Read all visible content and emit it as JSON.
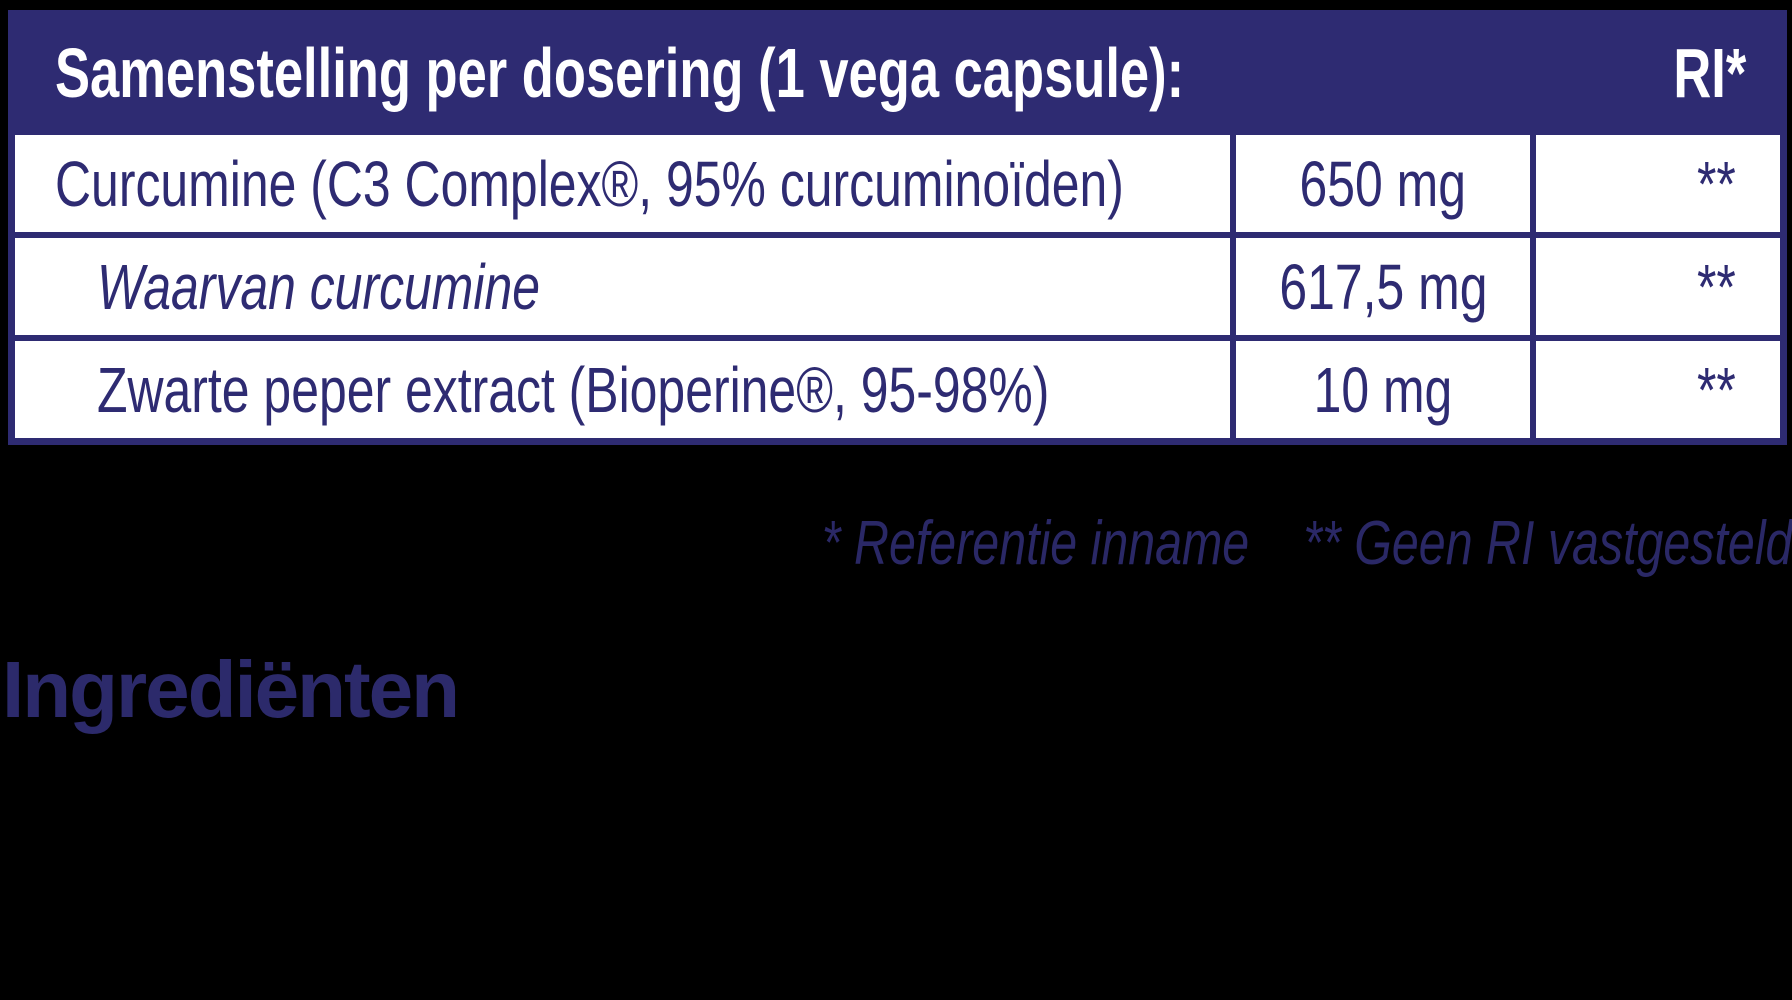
{
  "colors": {
    "background": "#000000",
    "navy": "#2E2B72",
    "white": "#FFFFFF",
    "table_text": "#2E2B72",
    "footnote_text": "#2A2866",
    "heading_text": "#2C2A6B"
  },
  "table": {
    "header": {
      "title": "Samenstelling per dosering (1 vega capsule):",
      "ri_label": "RI*"
    },
    "rows": [
      {
        "name": "Curcumine (C3 Complex®, 95% curcuminoïden)",
        "amount": "650 mg",
        "ri": "**"
      },
      {
        "name": "Waarvan curcumine",
        "amount": "617,5 mg",
        "ri": "**"
      },
      {
        "name": "Zwarte peper extract (Bioperine®, 95-98%)",
        "amount": "10 mg",
        "ri": "**"
      }
    ]
  },
  "footnotes": {
    "ri_reference": "* Referentie inname",
    "no_ri": "** Geen RI vastgesteld"
  },
  "heading": {
    "text": "Ingrediënten"
  }
}
